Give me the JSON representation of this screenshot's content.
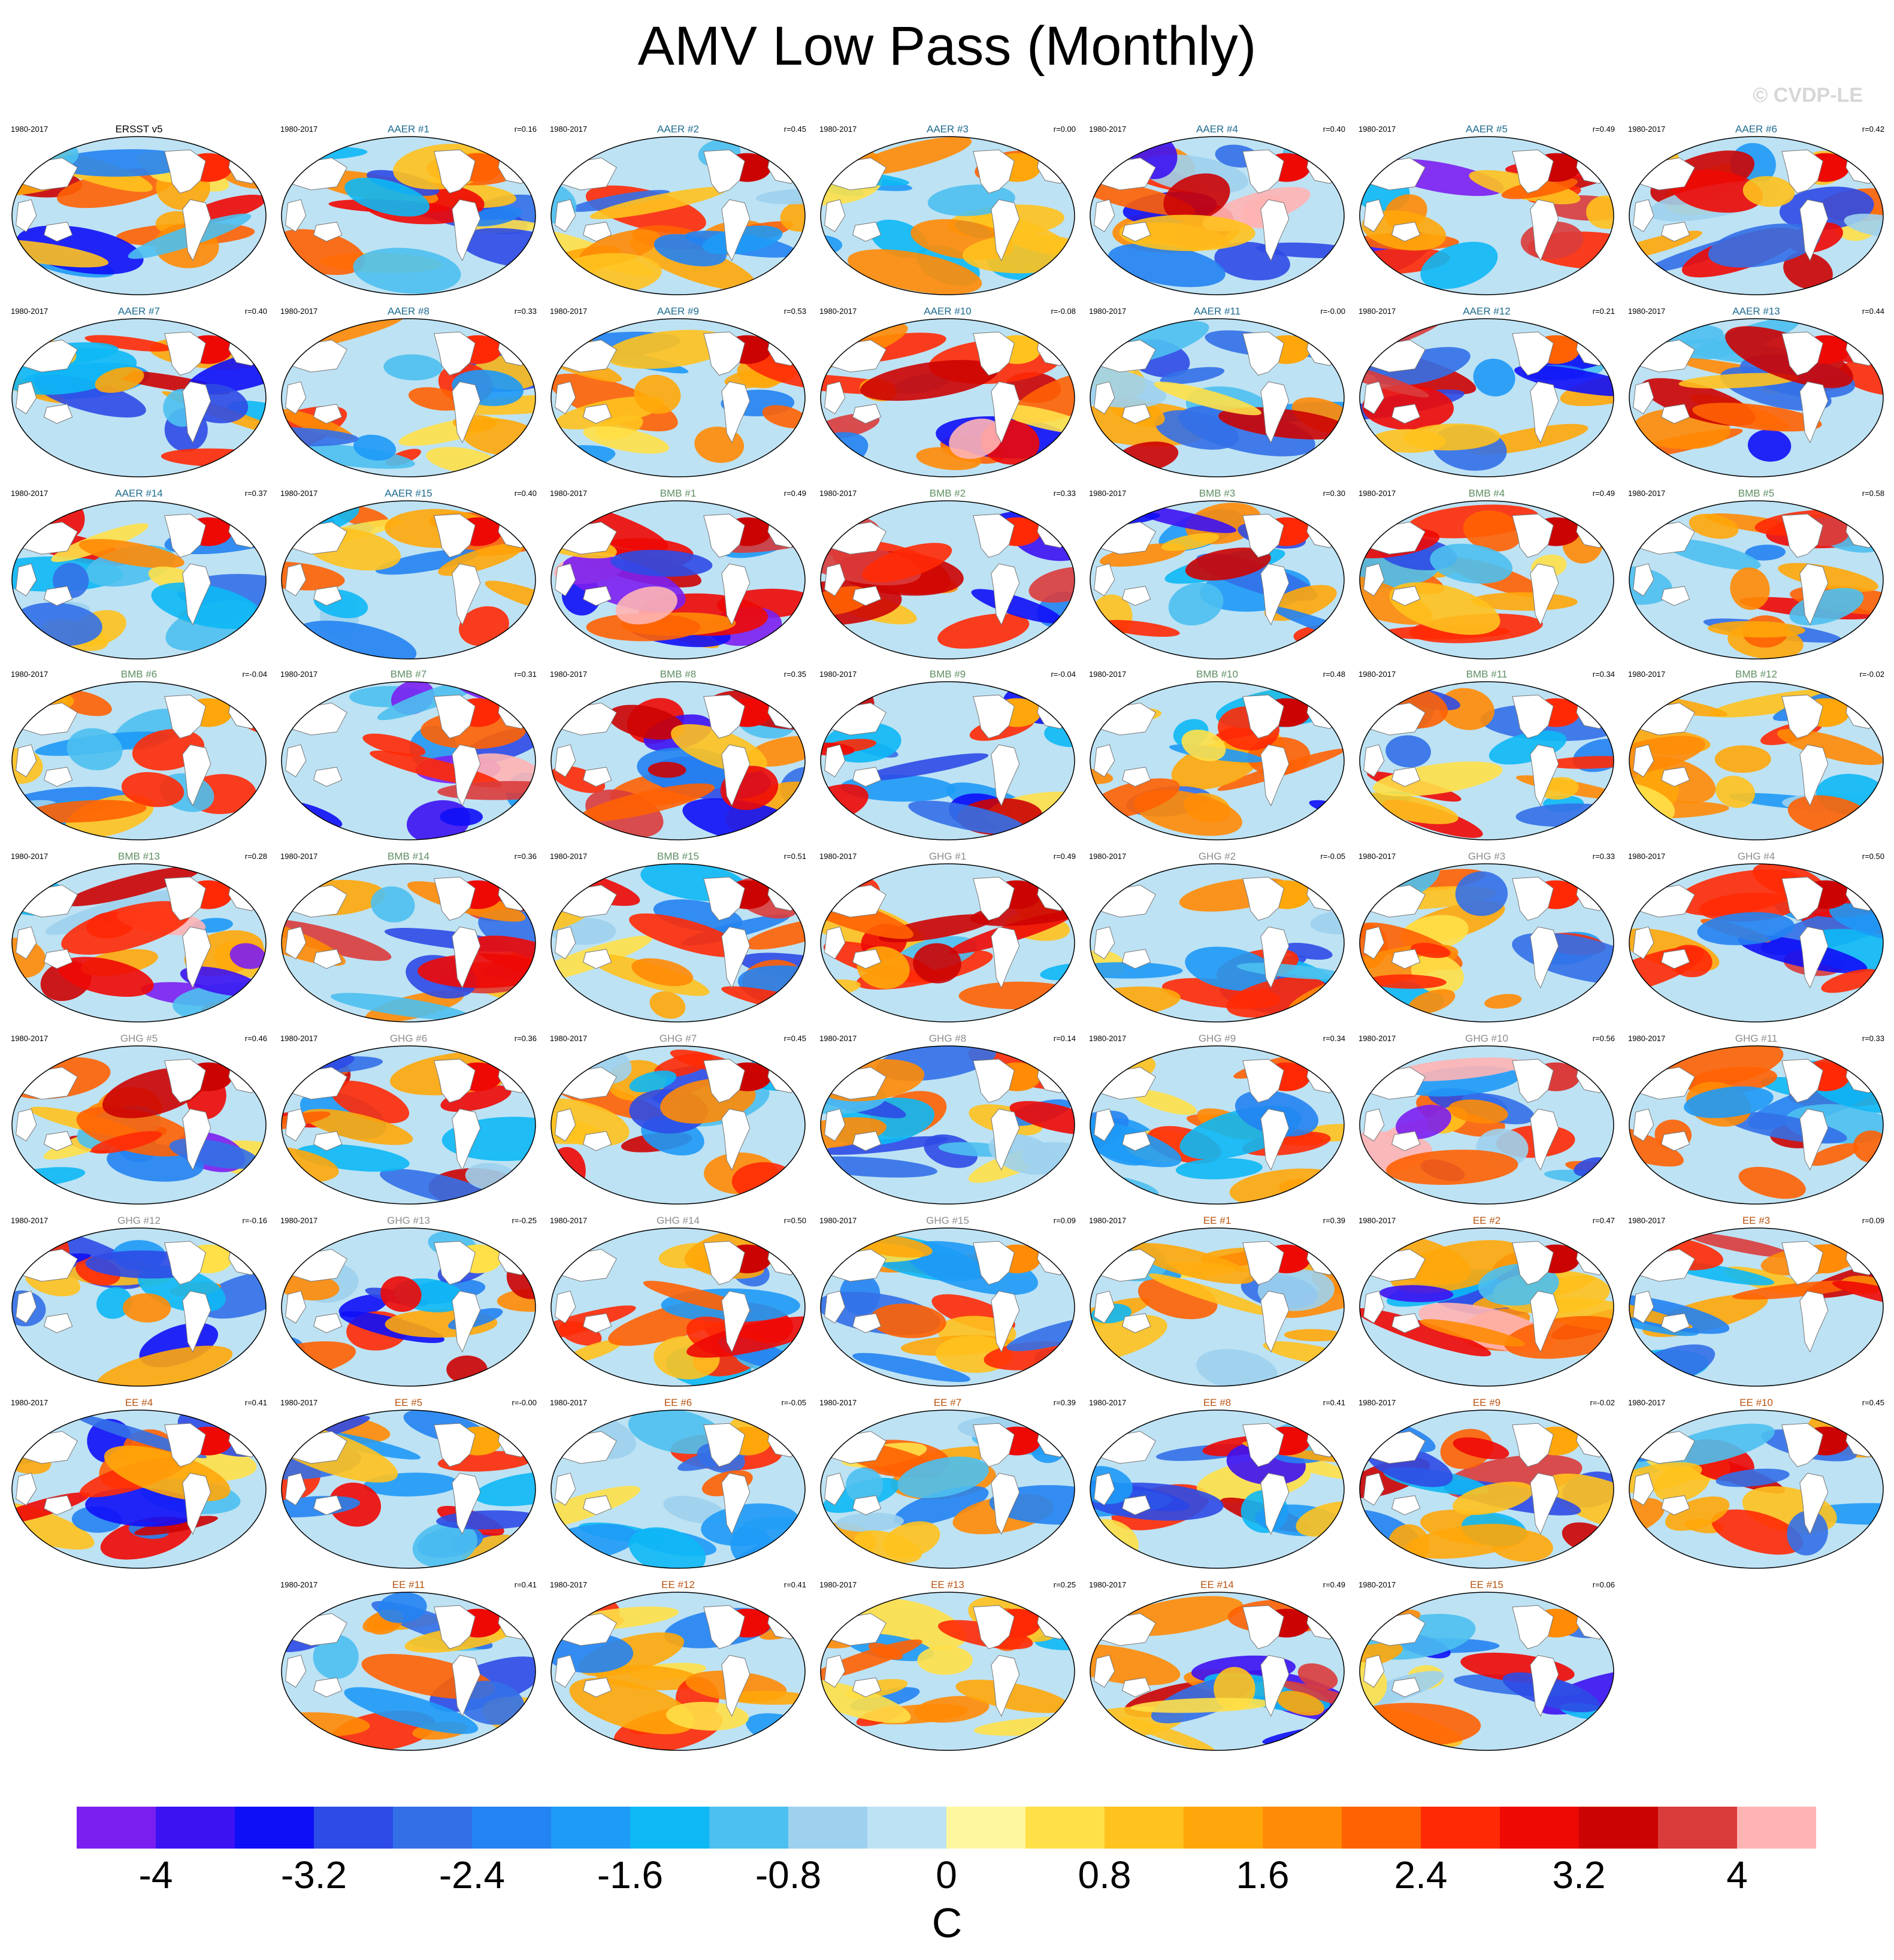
{
  "title": "AMV Low Pass (Monthly)",
  "copyright": "© CVDP-LE",
  "chart_data": {
    "type": "heatmap",
    "title": "AMV Low Pass (Monthly)",
    "variable": "Sea surface temperature regression pattern (global maps)",
    "units": "C",
    "colorbar": {
      "min": -4.4,
      "max": 4.4,
      "interval": 0.4,
      "ticks": [
        -4,
        -3.2,
        -2.4,
        -1.6,
        -0.8,
        0,
        0.8,
        1.6,
        2.4,
        3.2,
        4
      ],
      "tick_labels": [
        "-4",
        "-3.2",
        "-2.4",
        "-1.6",
        "-0.8",
        "0",
        "0.8",
        "1.6",
        "2.4",
        "3.2",
        "4"
      ],
      "colors": [
        "#7b1ff0",
        "#3d12f2",
        "#0f0ff7",
        "#2d4be6",
        "#3370e8",
        "#2483f2",
        "#1e9af7",
        "#0db8f5",
        "#4cc0f0",
        "#9dd1ee",
        "#bde2f4",
        "#fff6a0",
        "#ffe048",
        "#ffc21e",
        "#ffa70a",
        "#ff8b06",
        "#ff6203",
        "#ff2a05",
        "#ee0905",
        "#cc0303",
        "#da3c3c",
        "#ffb4b4"
      ]
    },
    "panels": [
      {
        "name": "ERSST v5",
        "period": "1980-2017",
        "r": ""
      },
      {
        "name": "AAER #1",
        "period": "1980-2017",
        "r": "r=0.16"
      },
      {
        "name": "AAER #2",
        "period": "1980-2017",
        "r": "r=0.45"
      },
      {
        "name": "AAER #3",
        "period": "1980-2017",
        "r": "r=0.00"
      },
      {
        "name": "AAER #4",
        "period": "1980-2017",
        "r": "r=0.40"
      },
      {
        "name": "AAER #5",
        "period": "1980-2017",
        "r": "r=0.49"
      },
      {
        "name": "AAER #6",
        "period": "1980-2017",
        "r": "r=0.42"
      },
      {
        "name": "AAER #7",
        "period": "1980-2017",
        "r": "r=0.40"
      },
      {
        "name": "AAER #8",
        "period": "1980-2017",
        "r": "r=0.33"
      },
      {
        "name": "AAER #9",
        "period": "1980-2017",
        "r": "r=0.53"
      },
      {
        "name": "AAER #10",
        "period": "1980-2017",
        "r": "r=-0.08"
      },
      {
        "name": "AAER #11",
        "period": "1980-2017",
        "r": "r=-0.00"
      },
      {
        "name": "AAER #12",
        "period": "1980-2017",
        "r": "r=0.21"
      },
      {
        "name": "AAER #13",
        "period": "1980-2017",
        "r": "r=0.44"
      },
      {
        "name": "AAER #14",
        "period": "1980-2017",
        "r": "r=0.37"
      },
      {
        "name": "AAER #15",
        "period": "1980-2017",
        "r": "r=0.40"
      },
      {
        "name": "BMB #1",
        "period": "1980-2017",
        "r": "r=0.49"
      },
      {
        "name": "BMB #2",
        "period": "1980-2017",
        "r": "r=0.33"
      },
      {
        "name": "BMB #3",
        "period": "1980-2017",
        "r": "r=0.30"
      },
      {
        "name": "BMB #4",
        "period": "1980-2017",
        "r": "r=0.49"
      },
      {
        "name": "BMB #5",
        "period": "1980-2017",
        "r": "r=0.58"
      },
      {
        "name": "BMB #6",
        "period": "1980-2017",
        "r": "r=-0.04"
      },
      {
        "name": "BMB #7",
        "period": "1980-2017",
        "r": "r=0.31"
      },
      {
        "name": "BMB #8",
        "period": "1980-2017",
        "r": "r=0.35"
      },
      {
        "name": "BMB #9",
        "period": "1980-2017",
        "r": "r=-0.04"
      },
      {
        "name": "BMB #10",
        "period": "1980-2017",
        "r": "r=0.48"
      },
      {
        "name": "BMB #11",
        "period": "1980-2017",
        "r": "r=0.34"
      },
      {
        "name": "BMB #12",
        "period": "1980-2017",
        "r": "r=-0.02"
      },
      {
        "name": "BMB #13",
        "period": "1980-2017",
        "r": "r=0.28"
      },
      {
        "name": "BMB #14",
        "period": "1980-2017",
        "r": "r=0.36"
      },
      {
        "name": "BMB #15",
        "period": "1980-2017",
        "r": "r=0.51"
      },
      {
        "name": "GHG #1",
        "period": "1980-2017",
        "r": "r=0.49"
      },
      {
        "name": "GHG #2",
        "period": "1980-2017",
        "r": "r=-0.05"
      },
      {
        "name": "GHG #3",
        "period": "1980-2017",
        "r": "r=0.33"
      },
      {
        "name": "GHG #4",
        "period": "1980-2017",
        "r": "r=0.50"
      },
      {
        "name": "GHG #5",
        "period": "1980-2017",
        "r": "r=0.46"
      },
      {
        "name": "GHG #6",
        "period": "1980-2017",
        "r": "r=0.36"
      },
      {
        "name": "GHG #7",
        "period": "1980-2017",
        "r": "r=0.45"
      },
      {
        "name": "GHG #8",
        "period": "1980-2017",
        "r": "r=0.14"
      },
      {
        "name": "GHG #9",
        "period": "1980-2017",
        "r": "r=0.34"
      },
      {
        "name": "GHG #10",
        "period": "1980-2017",
        "r": "r=0.56"
      },
      {
        "name": "GHG #11",
        "period": "1980-2017",
        "r": "r=0.33"
      },
      {
        "name": "GHG #12",
        "period": "1980-2017",
        "r": "r=-0.16"
      },
      {
        "name": "GHG #13",
        "period": "1980-2017",
        "r": "r=-0.25"
      },
      {
        "name": "GHG #14",
        "period": "1980-2017",
        "r": "r=0.50"
      },
      {
        "name": "GHG #15",
        "period": "1980-2017",
        "r": "r=0.09"
      },
      {
        "name": "EE #1",
        "period": "1980-2017",
        "r": "r=0.39"
      },
      {
        "name": "EE #2",
        "period": "1980-2017",
        "r": "r=0.47"
      },
      {
        "name": "EE #3",
        "period": "1980-2017",
        "r": "r=0.09"
      },
      {
        "name": "EE #4",
        "period": "1980-2017",
        "r": "r=0.41"
      },
      {
        "name": "EE #5",
        "period": "1980-2017",
        "r": "r=-0.00"
      },
      {
        "name": "EE #6",
        "period": "1980-2017",
        "r": "r=-0.05"
      },
      {
        "name": "EE #7",
        "period": "1980-2017",
        "r": "r=0.39"
      },
      {
        "name": "EE #8",
        "period": "1980-2017",
        "r": "r=0.41"
      },
      {
        "name": "EE #9",
        "period": "1980-2017",
        "r": "r=-0.02"
      },
      {
        "name": "EE #10",
        "period": "1980-2017",
        "r": "r=0.45"
      },
      {
        "name": "EE #11",
        "period": "1980-2017",
        "r": "r=0.41"
      },
      {
        "name": "EE #12",
        "period": "1980-2017",
        "r": "r=0.41"
      },
      {
        "name": "EE #13",
        "period": "1980-2017",
        "r": "r=0.25"
      },
      {
        "name": "EE #14",
        "period": "1980-2017",
        "r": "r=0.49"
      },
      {
        "name": "EE #15",
        "period": "1980-2017",
        "r": "r=0.06"
      }
    ]
  }
}
